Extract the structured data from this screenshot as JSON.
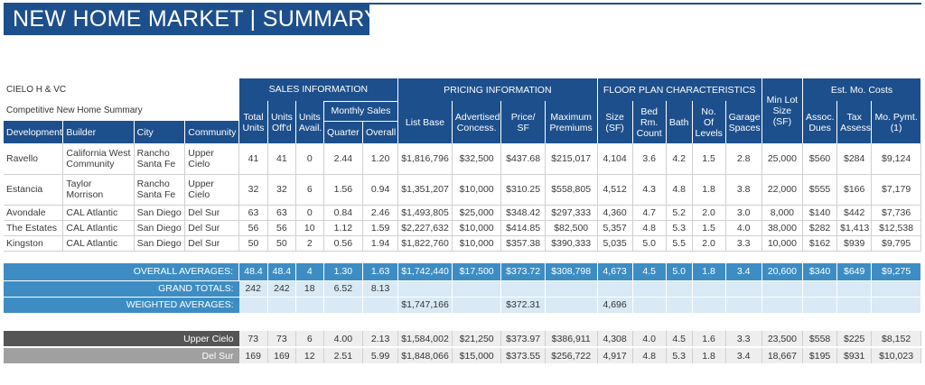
{
  "title": "NEW HOME MARKET | SUMMARY",
  "context": {
    "line1": "CIELO H & VC",
    "line2": "Competitive New Home Summary"
  },
  "groups": {
    "sales": "SALES INFORMATION",
    "pricing": "PRICING INFORMATION",
    "floor": "FLOOR PLAN CHARACTERISTICS",
    "lot": "Min Lot Size (SF)",
    "costs": "Est. Mo. Costs"
  },
  "headers": {
    "development": "Development",
    "builder": "Builder",
    "city": "City",
    "community": "Community",
    "total_units": "Total Units",
    "units_offd": "Units Off'd",
    "units_avail": "Units Avail.",
    "monthly_sales": "Monthly Sales",
    "quarter": "Quarter",
    "overall": "Overall",
    "list_base": "List Base",
    "adv_concess": "Advertised Concess.",
    "price_sf": "Price/ SF",
    "max_prem": "Maximum Premiums",
    "size": "Size (SF)",
    "bed": "Bed Rm. Count",
    "bath": "Bath",
    "levels": "No. Of Levels",
    "garage": "Garage Spaces",
    "assoc": "Assoc. Dues",
    "tax": "Tax Assess.",
    "pymt": "Mo. Pymt. (1)"
  },
  "rows": [
    [
      "Ravello",
      "California West Community",
      "Rancho Santa Fe",
      "Upper Cielo",
      "41",
      "41",
      "0",
      "2.44",
      "1.20",
      "$1,816,796",
      "$32,500",
      "$437.68",
      "$215,017",
      "4,104",
      "3.6",
      "4.2",
      "1.5",
      "2.8",
      "25,000",
      "$560",
      "$284",
      "$9,124"
    ],
    [
      "Estancia",
      "Taylor Morrison",
      "Rancho Santa Fe",
      "Upper Cielo",
      "32",
      "32",
      "6",
      "1.56",
      "0.94",
      "$1,351,207",
      "$10,000",
      "$310.25",
      "$558,805",
      "4,512",
      "4.3",
      "4.8",
      "1.8",
      "3.8",
      "22,000",
      "$555",
      "$166",
      "$7,179"
    ],
    [
      "Avondale",
      "CAL Atlantic",
      "San Diego",
      "Del Sur",
      "63",
      "63",
      "0",
      "0.84",
      "2.46",
      "$1,493,805",
      "$25,000",
      "$348.42",
      "$297,333",
      "4,360",
      "4.7",
      "5.2",
      "2.0",
      "3.0",
      "8,000",
      "$140",
      "$442",
      "$7,736"
    ],
    [
      "The Estates",
      "CAL Atlantic",
      "San Diego",
      "Del Sur",
      "56",
      "56",
      "10",
      "1.12",
      "1.59",
      "$2,227,632",
      "$10,000",
      "$414.85",
      "$82,500",
      "5,357",
      "4.8",
      "5.3",
      "1.5",
      "4.0",
      "38,000",
      "$282",
      "$1,413",
      "$12,538"
    ],
    [
      "Kingston",
      "CAL Atlantic",
      "San Diego",
      "Del Sur",
      "50",
      "50",
      "2",
      "0.56",
      "1.94",
      "$1,822,760",
      "$10,000",
      "$357.38",
      "$390,333",
      "5,035",
      "5.0",
      "5.5",
      "2.0",
      "3.3",
      "10,000",
      "$162",
      "$939",
      "$9,795"
    ]
  ],
  "overall_averages": {
    "label": "OVERALL AVERAGES:",
    "values": [
      "48.4",
      "48.4",
      "4",
      "1.30",
      "1.63",
      "$1,742,440",
      "$17,500",
      "$373.72",
      "$308,798",
      "4,673",
      "4.5",
      "5.0",
      "1.8",
      "3.4",
      "20,600",
      "$340",
      "$649",
      "$9,275"
    ]
  },
  "grand_totals": {
    "label": "GRAND TOTALS:",
    "values": [
      "242",
      "242",
      "18",
      "6.52",
      "8.13"
    ]
  },
  "weighted_averages": {
    "label": "WEIGHTED AVERAGES:",
    "list_base": "$1,747,166",
    "price_sf": "$372.31",
    "size": "4,696"
  },
  "community_summaries": [
    {
      "label": "Upper Cielo",
      "values": [
        "73",
        "73",
        "6",
        "4.00",
        "2.13",
        "$1,584,002",
        "$21,250",
        "$373.97",
        "$386,911",
        "4,308",
        "4.0",
        "4.5",
        "1.6",
        "3.3",
        "23,500",
        "$558",
        "$225",
        "$8,152"
      ]
    },
    {
      "label": "Del Sur",
      "values": [
        "169",
        "169",
        "12",
        "2.51",
        "5.99",
        "$1,848,066",
        "$15,000",
        "$373.55",
        "$256,722",
        "4,917",
        "4.8",
        "5.3",
        "1.8",
        "3.4",
        "18,667",
        "$195",
        "$931",
        "$10,023"
      ]
    }
  ],
  "colors": {
    "header_blue": "#1d4f8c",
    "average_blue": "#3d8dc4",
    "light_blue": "#d9e9f5",
    "dark_gray": "#555555",
    "mid_gray": "#a0a0a0"
  }
}
